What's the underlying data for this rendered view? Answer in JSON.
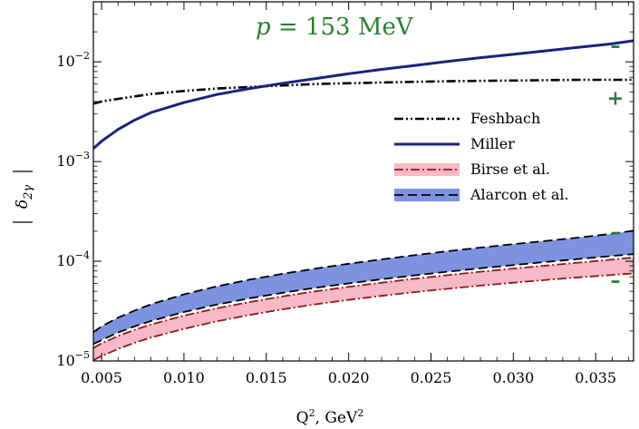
{
  "chart_data": {
    "type": "line",
    "annotation_var": "p",
    "annotation_eq": " = 153 MeV",
    "xlabel_base": "Q",
    "xlabel_sup": "2",
    "xlabel_unit": ", GeV",
    "xlabel_unit_sup": "2",
    "ylabel_base": "δ",
    "ylabel_sub": "2γ",
    "xlim": [
      0.0045,
      0.0373
    ],
    "ylim": [
      1e-05,
      0.04
    ],
    "yscale": "log",
    "x_ticks": [
      "0.005",
      "0.010",
      "0.015",
      "0.020",
      "0.025",
      "0.030",
      "0.035"
    ],
    "y_ticks": [
      {
        "base": "10",
        "exp": "−5",
        "value": 1e-05
      },
      {
        "base": "10",
        "exp": "−4",
        "value": 0.0001
      },
      {
        "base": "10",
        "exp": "−3",
        "value": 0.001
      },
      {
        "base": "10",
        "exp": "−2",
        "value": 0.01
      }
    ],
    "x": [
      0.0045,
      0.005,
      0.006,
      0.007,
      0.008,
      0.01,
      0.012,
      0.014,
      0.016,
      0.018,
      0.02,
      0.022,
      0.024,
      0.026,
      0.028,
      0.03,
      0.032,
      0.034,
      0.036,
      0.0373
    ],
    "series": [
      {
        "name": "Feshbach",
        "style": "dashdotdot",
        "color": "#000000",
        "values": [
          0.0038,
          0.004,
          0.00425,
          0.0045,
          0.00475,
          0.0051,
          0.0054,
          0.0056,
          0.0058,
          0.006,
          0.0061,
          0.0062,
          0.0063,
          0.00638,
          0.00645,
          0.0065,
          0.00655,
          0.0066,
          0.0066,
          0.0066
        ]
      },
      {
        "name": "Miller",
        "style": "solid",
        "color": "#1a237e",
        "values": [
          0.00135,
          0.0016,
          0.0021,
          0.0026,
          0.0031,
          0.0039,
          0.0047,
          0.0054,
          0.0061,
          0.0068,
          0.0076,
          0.0084,
          0.0092,
          0.0101,
          0.011,
          0.0119,
          0.0129,
          0.014,
          0.0152,
          0.0163
        ]
      },
      {
        "name": "Birse et al.",
        "style": "band-dashdot",
        "color": "#8b1a1a",
        "fill": "#f7b8c8",
        "lower": [
          1.02e-05,
          1.12e-05,
          1.32e-05,
          1.52e-05,
          1.72e-05,
          2.1e-05,
          2.5e-05,
          2.9e-05,
          3.3e-05,
          3.7e-05,
          4.1e-05,
          4.5e-05,
          4.9e-05,
          5.3e-05,
          5.7e-05,
          6.1e-05,
          6.5e-05,
          6.9e-05,
          7.3e-05,
          7.55e-05
        ],
        "upper": [
          1.35e-05,
          1.5e-05,
          1.78e-05,
          2.05e-05,
          2.32e-05,
          2.85e-05,
          3.38e-05,
          3.9e-05,
          4.45e-05,
          5e-05,
          5.55e-05,
          6.1e-05,
          6.68e-05,
          7.25e-05,
          7.85e-05,
          8.45e-05,
          9.05e-05,
          9.7e-05,
          0.000104,
          0.000109
        ]
      },
      {
        "name": "Alarcon et al.",
        "style": "band-dashed",
        "color": "#000000",
        "fill": "#7e93e0",
        "lower": [
          1.48e-05,
          1.62e-05,
          1.93e-05,
          2.22e-05,
          2.52e-05,
          3.1e-05,
          3.68e-05,
          4.25e-05,
          4.83e-05,
          5.42e-05,
          6e-05,
          6.6e-05,
          7.22e-05,
          7.85e-05,
          8.5e-05,
          9.15e-05,
          9.85e-05,
          0.0001055,
          0.000113,
          0.000118
        ],
        "upper": [
          1.95e-05,
          2.22e-05,
          2.72e-05,
          3.2e-05,
          3.7e-05,
          4.65e-05,
          5.6e-05,
          6.55e-05,
          7.5e-05,
          8.45e-05,
          9.45e-05,
          0.0001045,
          0.000115,
          0.000126,
          0.000137,
          0.0001485,
          0.00016,
          0.000173,
          0.000189,
          0.000203
        ]
      }
    ],
    "signs": [
      {
        "text": "–",
        "x": 0.0362,
        "y": 0.0145
      },
      {
        "text": "+",
        "x": 0.0362,
        "y": 0.0043
      },
      {
        "text": "–",
        "x": 0.0362,
        "y": 0.000195
      },
      {
        "text": "–",
        "x": 0.0362,
        "y": 6.4e-05
      }
    ]
  }
}
